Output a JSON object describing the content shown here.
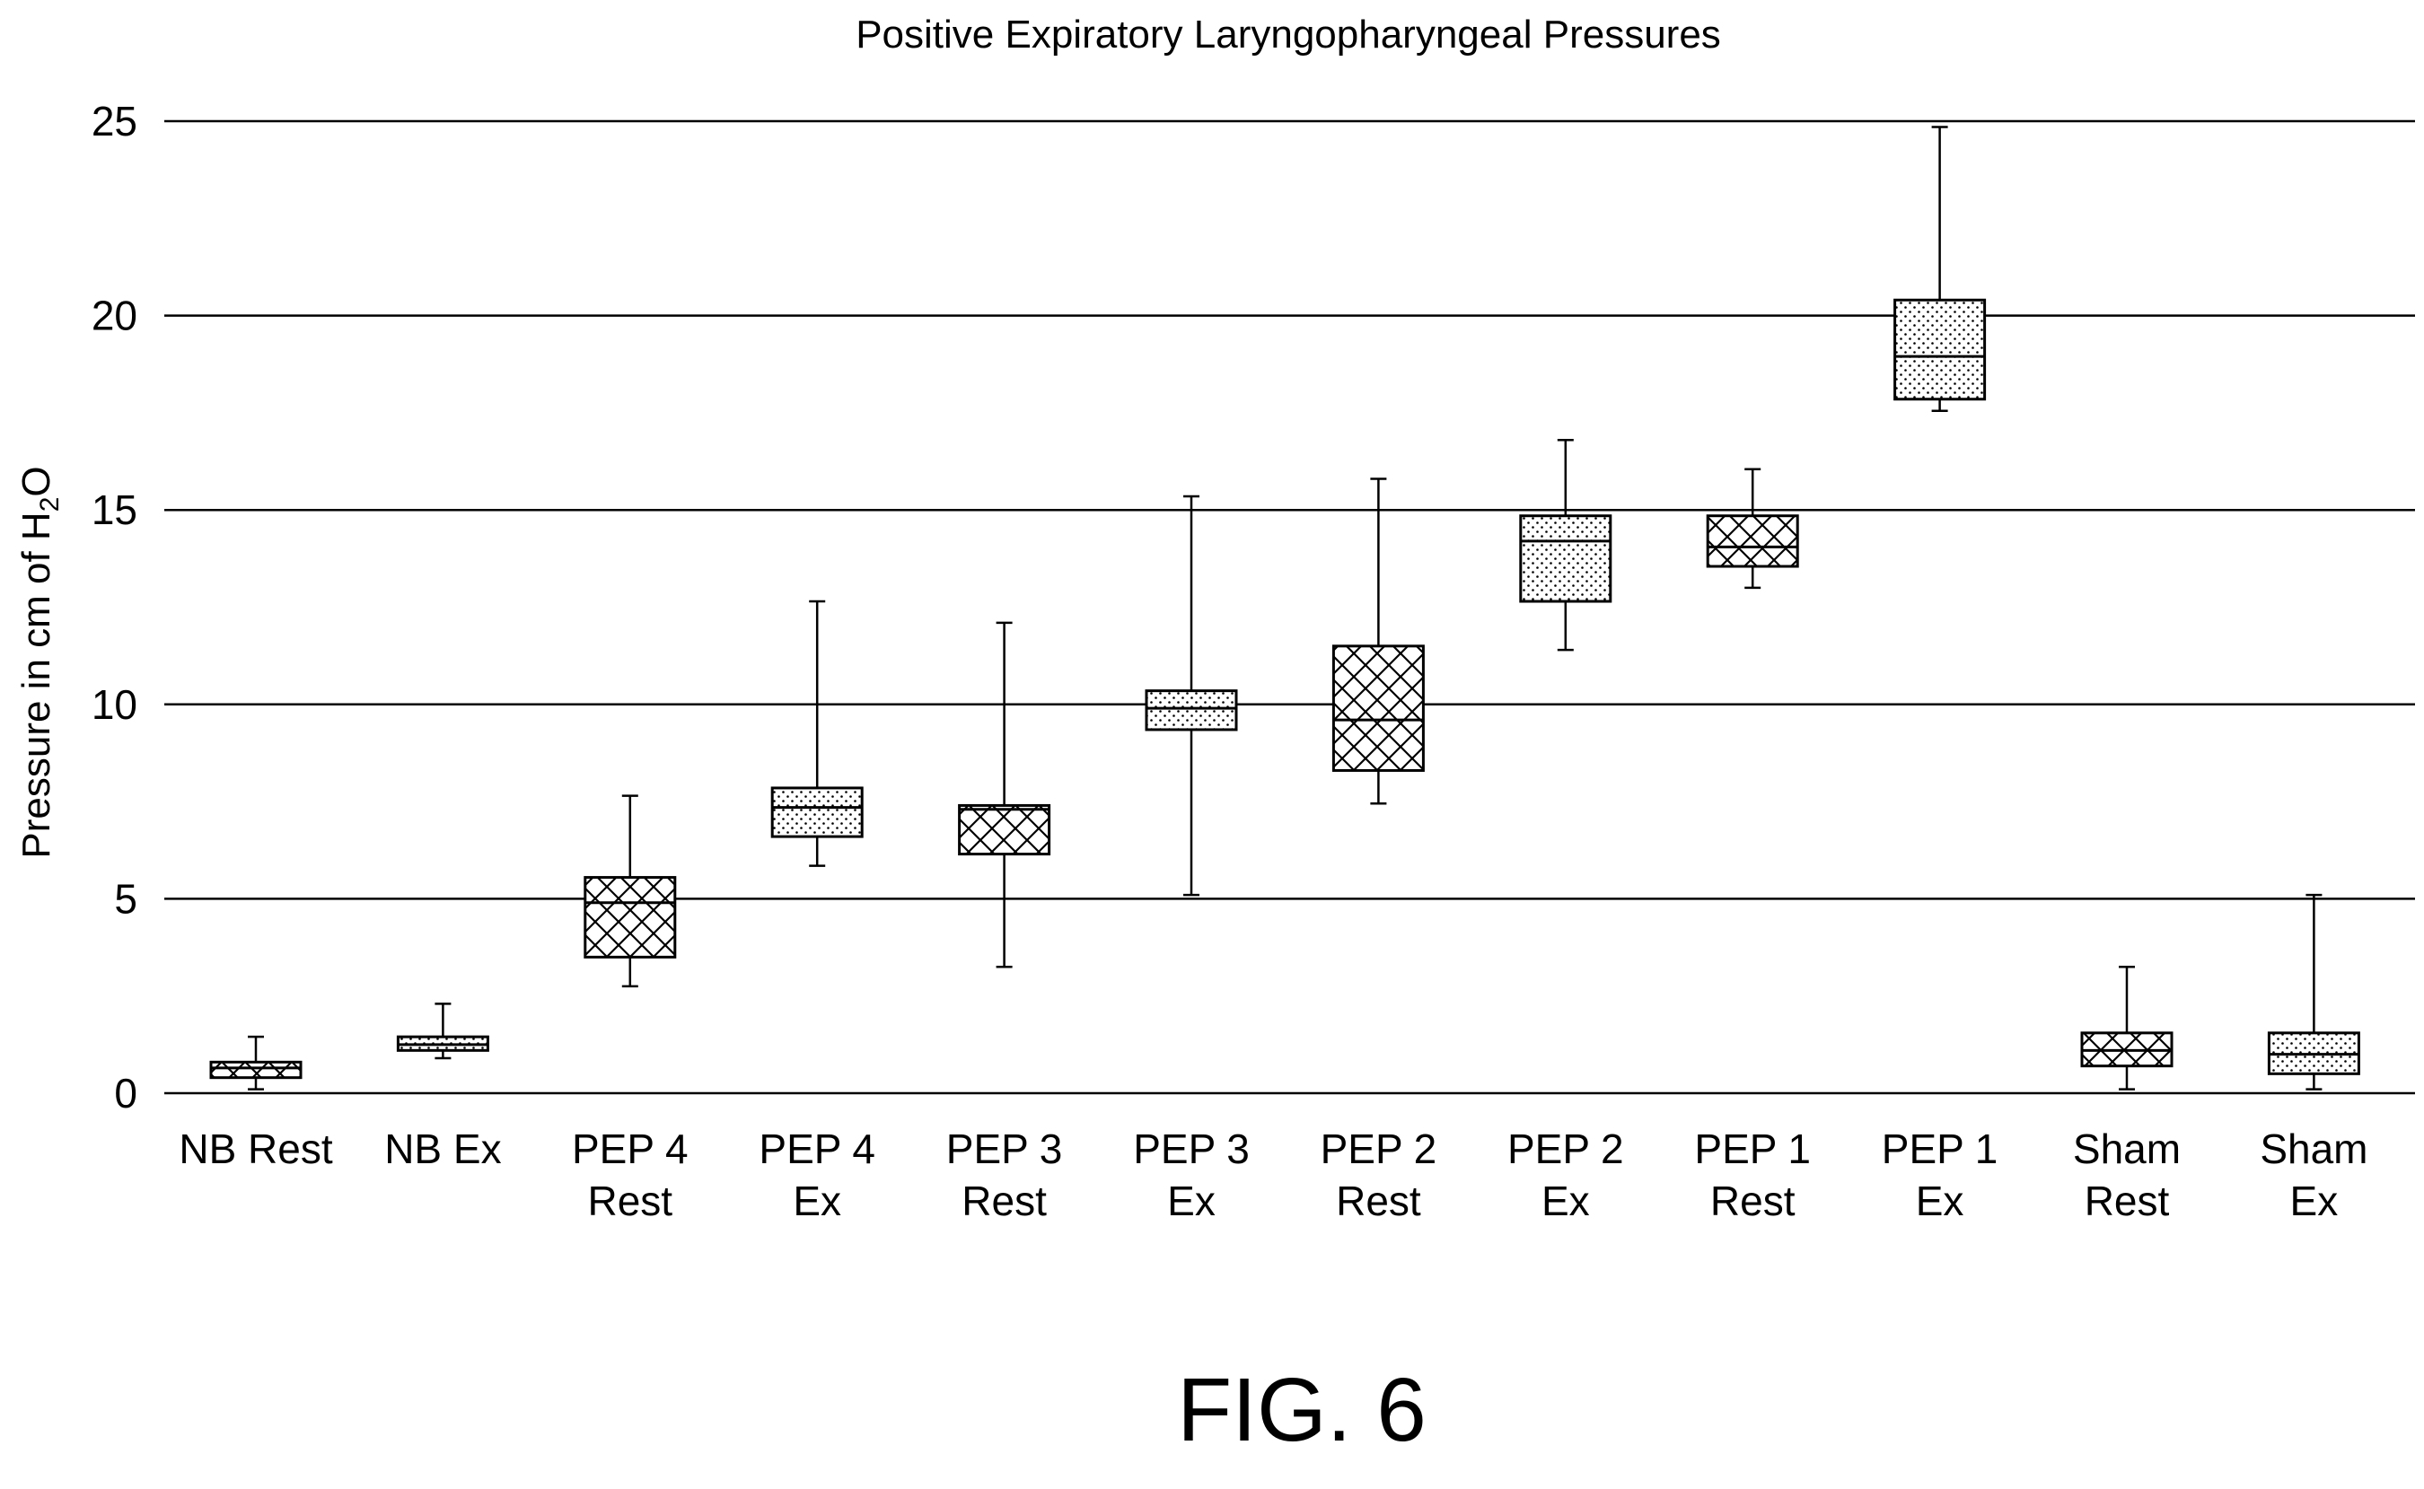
{
  "figure_label": "FIG. 6",
  "colors": {
    "ink": "#000000",
    "background": "#ffffff"
  },
  "chart_data": {
    "type": "box",
    "title": "Positive Expiratory Laryngopharyngeal Pressures",
    "ylabel_prefix": "Pressure in cm of H",
    "ylabel_subscript": "2",
    "ylabel_suffix": "O",
    "xlabel": "",
    "ylim": [
      0,
      25
    ],
    "yticks": [
      0,
      5,
      10,
      15,
      20,
      25
    ],
    "grid": true,
    "legend": "none",
    "categories": [
      {
        "label": [
          "NB Rest"
        ],
        "pattern": "crosshatch",
        "min": 0.1,
        "q1": 0.4,
        "median": 0.65,
        "q3": 0.8,
        "max": 1.45
      },
      {
        "label": [
          "NB Ex"
        ],
        "pattern": "dots",
        "min": 0.9,
        "q1": 1.1,
        "median": 1.25,
        "q3": 1.45,
        "max": 2.3
      },
      {
        "label": [
          "PEP 4",
          "Rest"
        ],
        "pattern": "crosshatch",
        "min": 2.75,
        "q1": 3.5,
        "median": 4.9,
        "q3": 5.55,
        "max": 7.65
      },
      {
        "label": [
          "PEP 4",
          "Ex"
        ],
        "pattern": "dots",
        "min": 5.85,
        "q1": 6.6,
        "median": 7.35,
        "q3": 7.85,
        "max": 12.65
      },
      {
        "label": [
          "PEP 3",
          "Rest"
        ],
        "pattern": "crosshatch",
        "min": 3.25,
        "q1": 6.15,
        "median": 7.3,
        "q3": 7.4,
        "max": 12.1
      },
      {
        "label": [
          "PEP 3",
          "Ex"
        ],
        "pattern": "dots",
        "min": 5.1,
        "q1": 9.35,
        "median": 9.9,
        "q3": 10.35,
        "max": 15.35
      },
      {
        "label": [
          "PEP 2",
          "Rest"
        ],
        "pattern": "crosshatch",
        "min": 7.45,
        "q1": 8.3,
        "median": 9.6,
        "q3": 11.5,
        "max": 15.8
      },
      {
        "label": [
          "PEP 2",
          "Ex"
        ],
        "pattern": "dots",
        "min": 11.4,
        "q1": 12.65,
        "median": 14.2,
        "q3": 14.85,
        "max": 16.8
      },
      {
        "label": [
          "PEP 1",
          "Rest"
        ],
        "pattern": "crosshatch",
        "min": 13.0,
        "q1": 13.55,
        "median": 14.05,
        "q3": 14.85,
        "max": 16.05
      },
      {
        "label": [
          "PEP 1",
          "Ex"
        ],
        "pattern": "dots",
        "min": 17.55,
        "q1": 17.85,
        "median": 18.95,
        "q3": 20.4,
        "max": 24.85
      },
      {
        "label": [
          "Sham",
          "Rest"
        ],
        "pattern": "crosshatch",
        "min": 0.1,
        "q1": 0.7,
        "median": 1.1,
        "q3": 1.55,
        "max": 3.25
      },
      {
        "label": [
          "Sham",
          "Ex"
        ],
        "pattern": "dots",
        "min": 0.1,
        "q1": 0.5,
        "median": 1.0,
        "q3": 1.55,
        "max": 5.1
      }
    ]
  }
}
